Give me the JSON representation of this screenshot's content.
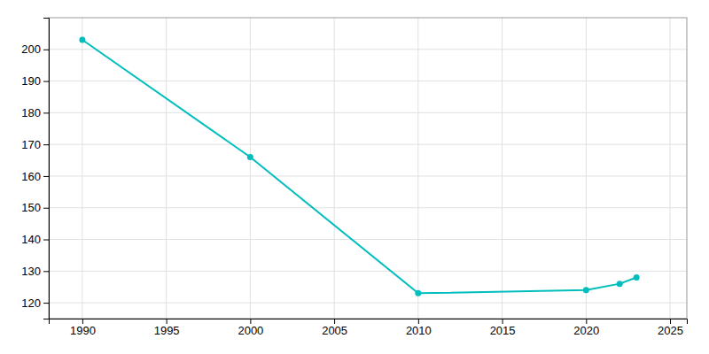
{
  "chart_data": {
    "type": "line",
    "x": [
      1990,
      2000,
      2010,
      2020,
      2022,
      2023
    ],
    "values": [
      203,
      166,
      123,
      124,
      126,
      128
    ],
    "color": "#00BEBE",
    "marker": "circle",
    "xlim": [
      1988,
      2026
    ],
    "ylim": [
      115,
      210
    ],
    "xticks": [
      1990,
      1995,
      2000,
      2005,
      2010,
      2015,
      2020,
      2025
    ],
    "yticks": [
      120,
      130,
      140,
      150,
      160,
      170,
      180,
      190,
      200
    ],
    "grid": true
  }
}
